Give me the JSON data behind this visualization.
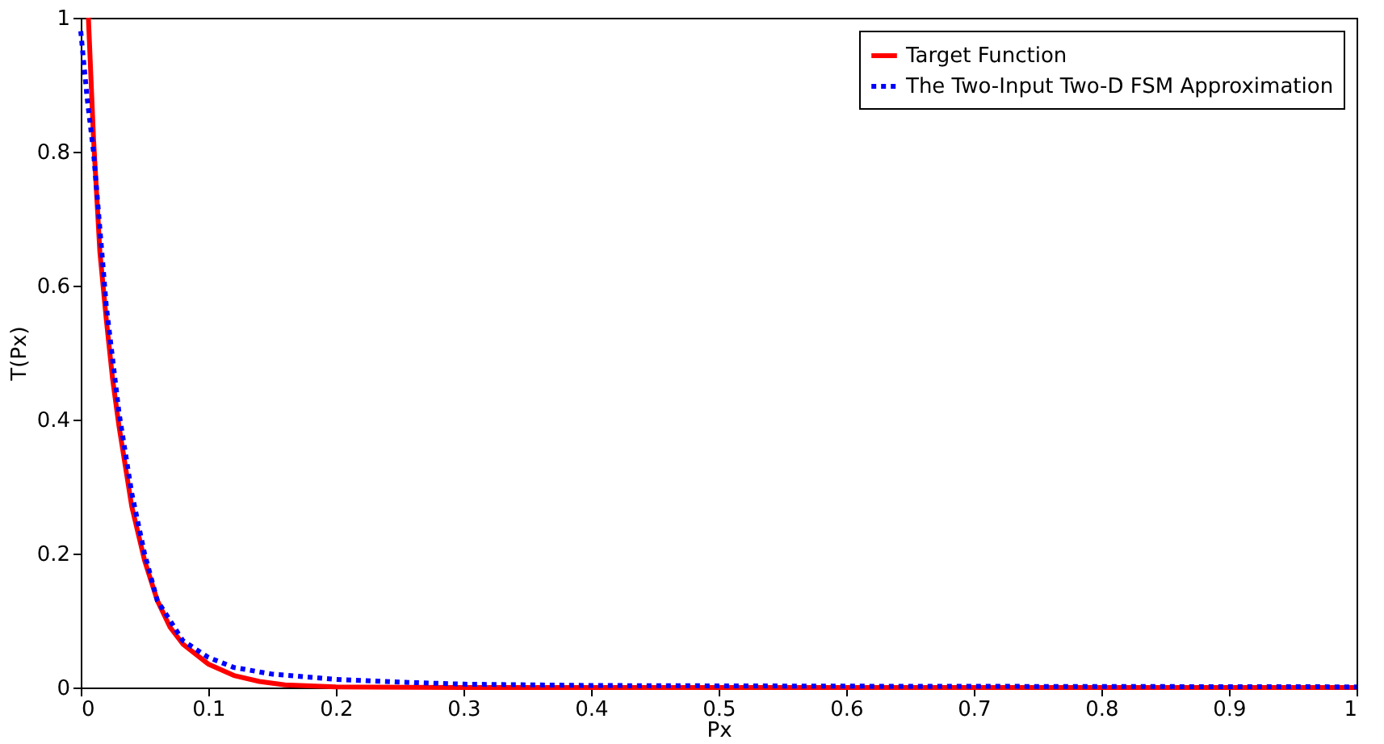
{
  "chart_data": {
    "type": "line",
    "xlabel": "Px",
    "ylabel": "T(Px)",
    "xlim": [
      0,
      1
    ],
    "ylim": [
      0,
      1
    ],
    "xticks": [
      0,
      0.1,
      0.2,
      0.3,
      0.4,
      0.5,
      0.6,
      0.7,
      0.8,
      0.9,
      1
    ],
    "yticks": [
      0,
      0.2,
      0.4,
      0.6,
      0.8,
      1
    ],
    "grid": false,
    "legend": "top right",
    "series": [
      {
        "name": "Target Function",
        "color": "#ff0000",
        "line_style": "solid",
        "x": [
          0.006,
          0.01,
          0.015,
          0.02,
          0.025,
          0.03,
          0.04,
          0.05,
          0.06,
          0.07,
          0.08,
          0.1,
          0.12,
          0.14,
          0.16,
          0.2,
          0.3,
          1
        ],
        "values": [
          1.0,
          0.82,
          0.65,
          0.55,
          0.46,
          0.39,
          0.27,
          0.19,
          0.13,
          0.09,
          0.065,
          0.035,
          0.018,
          0.009,
          0.004,
          0.001,
          0,
          0
        ]
      },
      {
        "name": "The Two-Input Two-D FSM Approximation",
        "color": "#0000ff",
        "line_style": "dotted",
        "x": [
          0,
          0.005,
          0.01,
          0.02,
          0.03,
          0.04,
          0.05,
          0.06,
          0.08,
          0.1,
          0.12,
          0.15,
          0.2,
          0.25,
          0.3,
          0.4,
          0.6,
          1
        ],
        "values": [
          0.98,
          0.88,
          0.8,
          0.57,
          0.41,
          0.29,
          0.2,
          0.13,
          0.07,
          0.045,
          0.03,
          0.02,
          0.012,
          0.008,
          0.005,
          0.003,
          0.002,
          0.001
        ]
      }
    ]
  }
}
